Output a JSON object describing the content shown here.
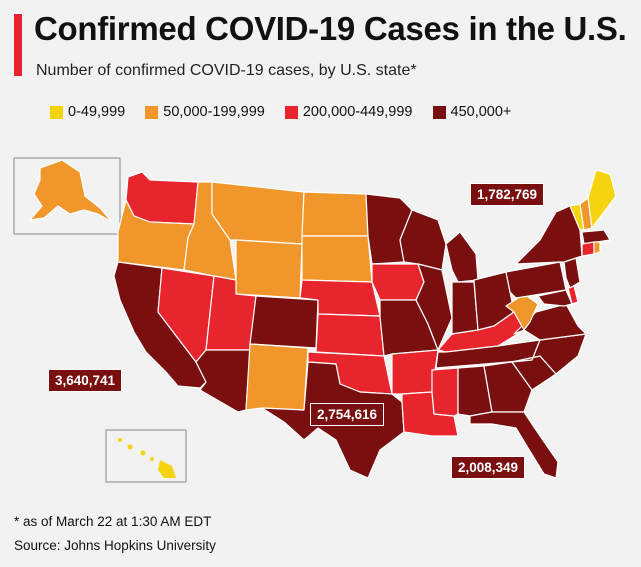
{
  "header": {
    "title": "Confirmed COVID-19 Cases in the U.S.",
    "subtitle": "Number of confirmed COVID-19 cases, by U.S. state*"
  },
  "legend": [
    {
      "label": "0-49,999",
      "color": "#f5d40f"
    },
    {
      "label": "50,000-199,999",
      "color": "#f0962a"
    },
    {
      "label": "200,000-449,999",
      "color": "#e8242c"
    },
    {
      "label": "450,000+",
      "color": "#7a0f10"
    }
  ],
  "callouts": {
    "new_york": "1,782,769",
    "california": "3,640,741",
    "texas": "2,754,616",
    "florida": "2,008,349"
  },
  "footer": {
    "note": "* as of March 22 at 1:30 AM EDT",
    "source": "Source: Johns Hopkins University"
  },
  "colors": {
    "background": "#f2f2f2",
    "accent": "#e8222e",
    "border": "#ffffff"
  }
}
